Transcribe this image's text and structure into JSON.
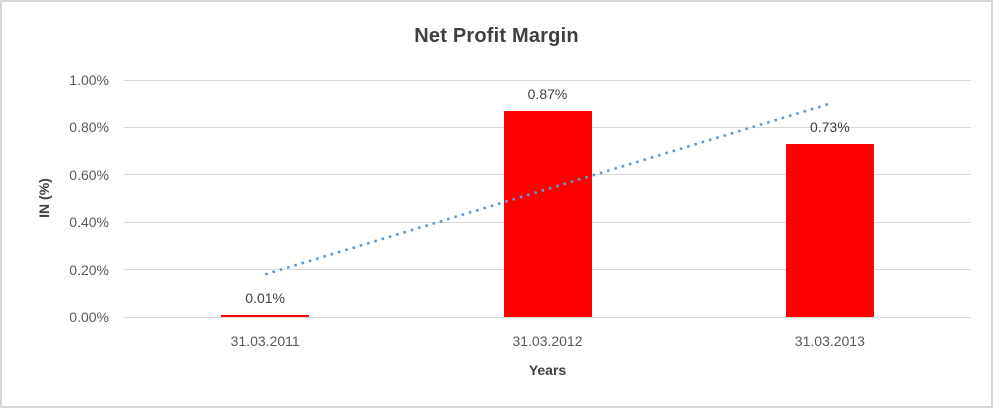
{
  "chart_data": {
    "type": "bar",
    "title": "Net Profit Margin",
    "xlabel": "Years",
    "ylabel": "IN (%)",
    "categories": [
      "31.03.2011",
      "31.03.2012",
      "31.03.2013"
    ],
    "values": [
      0.01,
      0.87,
      0.73
    ],
    "data_labels": [
      "0.01%",
      "0.87%",
      "0.73%"
    ],
    "y_tick_labels": [
      "0.00%",
      "0.20%",
      "0.40%",
      "0.60%",
      "0.80%",
      "1.00%"
    ],
    "y_tick_values": [
      0,
      0.2,
      0.4,
      0.6,
      0.8,
      1.0
    ],
    "ylim": [
      0,
      1.0
    ],
    "grid": true,
    "legend": false,
    "colors": {
      "bar": "#ff0000",
      "trendline": "#5b9bd5",
      "gridline": "#d9d9d9"
    },
    "trendline": {
      "type": "linear",
      "style": "dotted",
      "start_value": 0.18,
      "end_value": 0.9
    }
  }
}
